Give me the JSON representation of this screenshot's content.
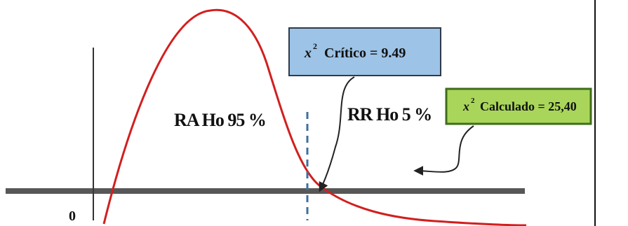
{
  "diagram": {
    "origin_label": "0",
    "acceptance_region_label": "RA Ho 95 %",
    "rejection_region_label": "RR Ho 5 %",
    "critical_box": {
      "symbol": "x",
      "exponent": "2",
      "text": "Crítico = 9.49",
      "fill": "#9dc3e6",
      "stroke": "#2f3a4a"
    },
    "calculated_box": {
      "symbol": "x",
      "exponent": "2",
      "text": "Calculado = 25,40",
      "fill": "#a9d65a",
      "stroke": "#3f6d1a"
    },
    "colors": {
      "curve": "#d21f1f",
      "axis": "#222222",
      "critical_line": "#3f6f9f",
      "arrow": "#222222",
      "divider": "#111111"
    }
  }
}
